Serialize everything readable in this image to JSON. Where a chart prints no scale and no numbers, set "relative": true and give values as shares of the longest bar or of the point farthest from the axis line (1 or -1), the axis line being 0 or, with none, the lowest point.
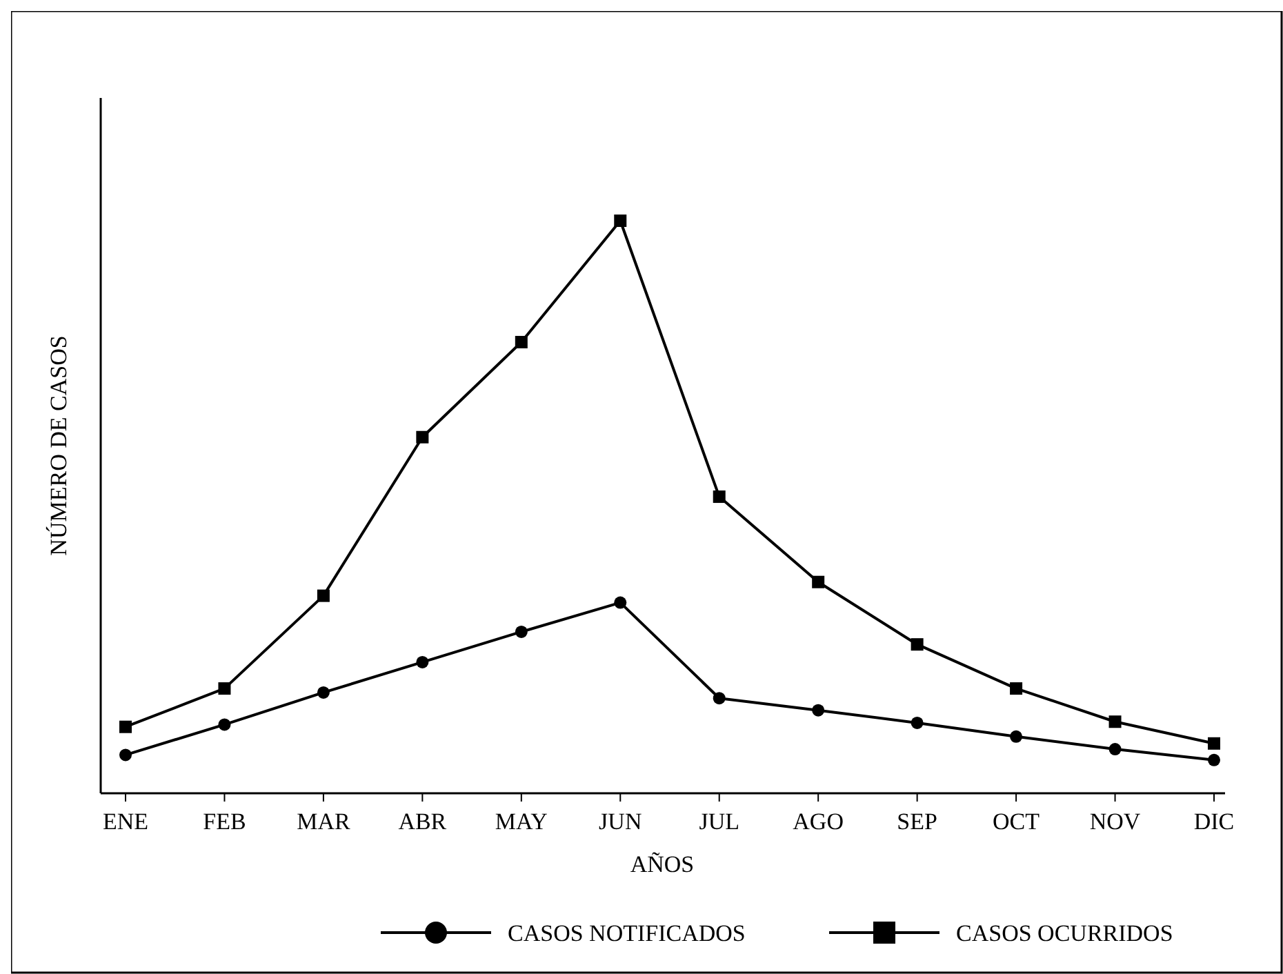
{
  "chart_data": {
    "type": "line",
    "relative": true,
    "xlabel": "AÑOS",
    "ylabel": "NÚMERO DE CASOS",
    "categories": [
      "ENE",
      "FEB",
      "MAR",
      "ABR",
      "MAY",
      "JUN",
      "JUL",
      "AGO",
      "SEP",
      "OCT",
      "NOV",
      "DIC"
    ],
    "legend": "bottom",
    "line_style": "solid",
    "series": [
      {
        "name": "CASOS NOTIFICADOS",
        "color": "#000000",
        "marker": "circle",
        "values": [
          0.067,
          0.12,
          0.176,
          0.229,
          0.282,
          0.333,
          0.166,
          0.145,
          0.123,
          0.099,
          0.077,
          0.058
        ]
      },
      {
        "name": "CASOS OCURRIDOS",
        "color": "#000000",
        "marker": "square",
        "values": [
          0.116,
          0.183,
          0.345,
          0.622,
          0.788,
          1,
          0.518,
          0.369,
          0.26,
          0.183,
          0.125,
          0.087
        ]
      }
    ]
  }
}
